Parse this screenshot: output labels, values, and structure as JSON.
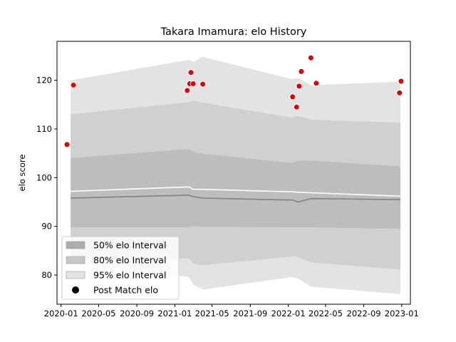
{
  "chart_data": {
    "type": "line",
    "title": "Takara Imamura: elo History",
    "xlabel": "",
    "ylabel": "elo score",
    "xlim": [
      "2019-12-19",
      "2023-01-29"
    ],
    "ylim": [
      74,
      128
    ],
    "grid": false,
    "legend_placement": "lower left",
    "x_ticks": [
      "2020-01",
      "2020-05",
      "2020-09",
      "2021-01",
      "2021-05",
      "2021-09",
      "2022-01",
      "2022-05",
      "2022-09",
      "2023-01"
    ],
    "y_ticks": [
      80,
      90,
      100,
      110,
      120
    ],
    "bands": {
      "x": [
        "2020-02-01",
        "2021-02-15",
        "2021-03-01",
        "2021-04-01",
        "2022-01-15",
        "2022-02-01",
        "2022-03-15",
        "2022-12-28"
      ],
      "intervals": [
        {
          "name": "95% elo Interval",
          "color": "#e3e3e3",
          "upper": [
            120.0,
            124.2,
            123.8,
            124.8,
            120.2,
            120.5,
            119.0,
            119.7
          ],
          "lower": [
            82.5,
            79.6,
            78.1,
            77.0,
            79.6,
            79.3,
            77.6,
            76.1
          ]
        },
        {
          "name": "80% elo Interval",
          "color": "#d0d0d0",
          "upper": [
            113.0,
            115.5,
            115.9,
            115.4,
            112.3,
            112.7,
            111.9,
            111.3
          ],
          "lower": [
            83.0,
            83.4,
            82.4,
            82.0,
            83.8,
            83.7,
            82.6,
            81.1
          ]
        },
        {
          "name": "50% elo Interval",
          "color": "#bdbdbd",
          "upper": [
            104.0,
            105.9,
            105.3,
            104.9,
            103.0,
            103.5,
            103.5,
            102.3
          ],
          "lower": [
            89.8,
            89.8,
            90.0,
            89.9,
            89.8,
            89.8,
            89.8,
            89.5
          ]
        }
      ]
    },
    "series": [
      {
        "name": "",
        "color": "#ffffff",
        "x": [
          "2020-02-01",
          "2021-02-15",
          "2021-03-01",
          "2021-04-01",
          "2022-01-15",
          "2022-02-01",
          "2022-03-15",
          "2022-12-28"
        ],
        "values": [
          97.2,
          98.1,
          97.6,
          97.6,
          97.1,
          97.0,
          96.9,
          96.2
        ]
      },
      {
        "name": "",
        "color": "#808080",
        "x": [
          "2020-02-01",
          "2021-02-15",
          "2021-03-01",
          "2021-04-01",
          "2022-01-15",
          "2022-02-01",
          "2022-03-15",
          "2022-12-28"
        ],
        "values": [
          95.8,
          96.4,
          96.1,
          95.8,
          95.4,
          95.0,
          95.7,
          95.5
        ]
      }
    ],
    "points": {
      "name": "Post Match elo",
      "color": "#dd0000",
      "x": [
        "2020-01-20",
        "2020-02-10",
        "2021-02-10",
        "2021-02-18",
        "2021-02-22",
        "2021-03-01",
        "2021-04-01",
        "2022-01-15",
        "2022-01-28",
        "2022-02-05",
        "2022-02-12",
        "2022-03-15",
        "2022-04-01",
        "2022-12-25",
        "2022-12-30"
      ],
      "values": [
        106.8,
        119.0,
        117.9,
        119.3,
        121.6,
        119.3,
        119.2,
        116.6,
        114.5,
        118.8,
        121.8,
        124.6,
        119.4,
        117.4,
        119.8
      ]
    },
    "legend": [
      {
        "label": "50% elo Interval",
        "kind": "patch",
        "color": "#adadad"
      },
      {
        "label": "80% elo Interval",
        "kind": "patch",
        "color": "#c7c7c7"
      },
      {
        "label": "95% elo Interval",
        "kind": "patch",
        "color": "#e3e3e3"
      },
      {
        "label": "Post Match elo",
        "kind": "marker",
        "color": "#000000"
      }
    ]
  }
}
